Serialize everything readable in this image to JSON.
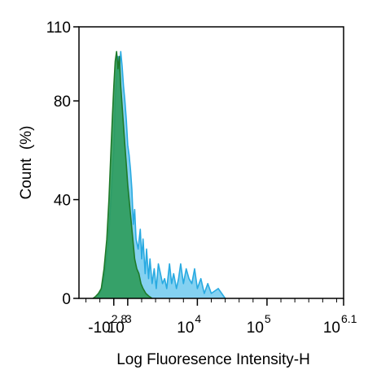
{
  "chart_data": {
    "type": "area",
    "xlabel": "Log Fluoresence Intensity-H",
    "ylabel": "Count  (%)",
    "ylim": [
      0,
      110
    ],
    "x_scale": "biexponential",
    "x_range_log": [
      2.3,
      6.1
    ],
    "y_ticks": [
      {
        "value": 0,
        "label": "0"
      },
      {
        "value": 40,
        "label": "40"
      },
      {
        "value": 80,
        "label": "80"
      },
      {
        "value": 110,
        "label": "110"
      }
    ],
    "x_ticks": [
      {
        "value": 2.8,
        "base": "-10",
        "exp": "2.8"
      },
      {
        "value": 3,
        "base": "10",
        "exp": "3"
      },
      {
        "value": 4,
        "base": "10",
        "exp": "4"
      },
      {
        "value": 5,
        "base": "10",
        "exp": "5"
      },
      {
        "value": 6.1,
        "base": "10",
        "exp": "6.1"
      }
    ],
    "series": [
      {
        "color": "#29aae1",
        "fill": "#6fc9ef",
        "points": [
          [
            2.56,
            0
          ],
          [
            2.6,
            2
          ],
          [
            2.66,
            8
          ],
          [
            2.72,
            22
          ],
          [
            2.76,
            40
          ],
          [
            2.8,
            60
          ],
          [
            2.82,
            80
          ],
          [
            2.84,
            90
          ],
          [
            2.86,
            98
          ],
          [
            2.88,
            92
          ],
          [
            2.9,
            100
          ],
          [
            2.92,
            94
          ],
          [
            2.94,
            86
          ],
          [
            2.96,
            80
          ],
          [
            2.98,
            72
          ],
          [
            3.0,
            62
          ],
          [
            3.02,
            58
          ],
          [
            3.04,
            52
          ],
          [
            3.06,
            44
          ],
          [
            3.08,
            30
          ],
          [
            3.1,
            36
          ],
          [
            3.12,
            24
          ],
          [
            3.15,
            20
          ],
          [
            3.18,
            28
          ],
          [
            3.2,
            16
          ],
          [
            3.22,
            24
          ],
          [
            3.25,
            10
          ],
          [
            3.27,
            20
          ],
          [
            3.3,
            8
          ],
          [
            3.32,
            16
          ],
          [
            3.35,
            6
          ],
          [
            3.38,
            12
          ],
          [
            3.41,
            4
          ],
          [
            3.44,
            14
          ],
          [
            3.47,
            10
          ],
          [
            3.5,
            6
          ],
          [
            3.53,
            8
          ],
          [
            3.56,
            4
          ],
          [
            3.6,
            14
          ],
          [
            3.63,
            6
          ],
          [
            3.66,
            10
          ],
          [
            3.7,
            4
          ],
          [
            3.73,
            8
          ],
          [
            3.76,
            14
          ],
          [
            3.8,
            6
          ],
          [
            3.84,
            12
          ],
          [
            3.88,
            8
          ],
          [
            3.92,
            6
          ],
          [
            3.96,
            12
          ],
          [
            4.0,
            4
          ],
          [
            4.05,
            8
          ],
          [
            4.1,
            2
          ],
          [
            4.15,
            6
          ],
          [
            4.2,
            2
          ],
          [
            4.3,
            4
          ],
          [
            4.4,
            0
          ]
        ]
      },
      {
        "color": "#1e7a2a",
        "fill": "#2e9b5a",
        "points": [
          [
            2.5,
            0
          ],
          [
            2.54,
            0.8
          ],
          [
            2.58,
            2
          ],
          [
            2.62,
            4
          ],
          [
            2.66,
            12
          ],
          [
            2.7,
            24
          ],
          [
            2.73,
            40
          ],
          [
            2.76,
            60
          ],
          [
            2.78,
            74
          ],
          [
            2.8,
            86
          ],
          [
            2.82,
            96
          ],
          [
            2.84,
            100
          ],
          [
            2.86,
            93
          ],
          [
            2.88,
            98
          ],
          [
            2.9,
            86
          ],
          [
            2.92,
            78
          ],
          [
            2.94,
            70
          ],
          [
            2.96,
            62
          ],
          [
            2.98,
            54
          ],
          [
            3.0,
            46
          ],
          [
            3.02,
            40
          ],
          [
            3.04,
            34
          ],
          [
            3.06,
            28
          ],
          [
            3.08,
            22
          ],
          [
            3.1,
            16
          ],
          [
            3.13,
            12
          ],
          [
            3.16,
            10
          ],
          [
            3.19,
            6
          ],
          [
            3.22,
            4
          ],
          [
            3.26,
            2
          ],
          [
            3.3,
            1
          ],
          [
            3.35,
            0
          ]
        ]
      }
    ]
  }
}
